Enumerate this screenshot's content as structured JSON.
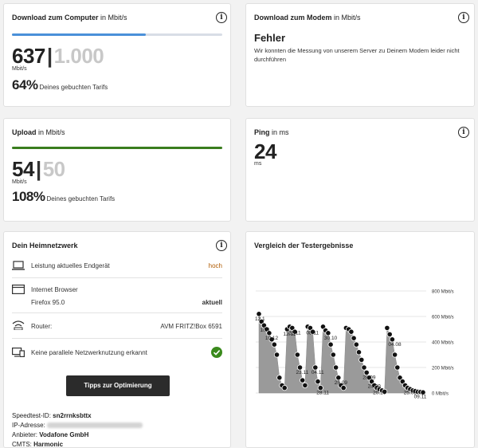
{
  "download": {
    "title": "Download zum Computer",
    "unit_suffix": "in Mbit/s",
    "value": "637",
    "separator": "|",
    "max": "1.000",
    "unit": "Mbit/s",
    "percent": "64%",
    "percent_label": "Deines gebuchten Tarifs",
    "fill_fraction": 0.637,
    "bar_color": "#4a90d9"
  },
  "modem": {
    "title": "Download zum Modem",
    "unit_suffix": "in Mbit/s",
    "error_title": "Fehler",
    "error_text": "Wir konnten die Messung von unserem Server zu Deinem Modem leider nicht durchführen"
  },
  "upload": {
    "title": "Upload",
    "unit_suffix": "in Mbit/s",
    "value": "54",
    "separator": "|",
    "max": "50",
    "unit": "Mbit/s",
    "percent": "108%",
    "percent_label": "Deines gebuchten Tarifs",
    "fill_fraction": 1.0,
    "bar_color": "#3a7d1e"
  },
  "ping": {
    "title": "Ping",
    "unit_suffix": "in ms",
    "value": "24",
    "unit": "ms"
  },
  "network": {
    "title": "Dein Heimnetzwerk",
    "rows": [
      {
        "icon": "laptop-icon",
        "label": "Leistung aktuelles Endgerät",
        "value": "hoch"
      },
      {
        "icon": "browser-icon",
        "label": "Internet Browser",
        "sub": "Firefox 95.0",
        "value": "aktuell"
      },
      {
        "icon": "wifi-icon",
        "label": "Router:",
        "value": "AVM FRITZ!Box 6591"
      },
      {
        "icon": "devices-icon",
        "label": "Keine parallele Netzwerknutzung erkannt",
        "value": ""
      }
    ],
    "button_label": "Tipps zur Optimierung",
    "speedtest_id_label": "Speedtest-ID:",
    "speedtest_id": "sn2rrnksbttx",
    "ip_label": "IP-Adresse:",
    "provider_label": "Anbieter:",
    "provider": "Vodafone GmbH",
    "cmts_label": "CMTS:",
    "cmts": "Harmonic",
    "check_color": "#3a8a1c"
  },
  "comparison": {
    "title": "Vergleich der Testergebnisse"
  },
  "chart_data": {
    "type": "area",
    "title": "Vergleich der Testergebnisse",
    "ylim": [
      0,
      800
    ],
    "y_ticks": [
      0,
      200,
      400,
      600,
      800
    ],
    "y_tick_labels": [
      "0 Mbit/s",
      "200 Mbit/s",
      "400 Mbit/s",
      "600 Mbit/s",
      "800 Mbit/s"
    ],
    "point_labels": [
      "12.1",
      "10.1",
      "10.12",
      "12.11",
      "22.11",
      "23.11",
      "08.11",
      "04.11",
      "28.11",
      "30.10",
      "25.09",
      "28.09",
      "24.09",
      "20.10",
      "04.08",
      "25.08",
      "09.11"
    ],
    "series": [
      {
        "values": [
          620,
          560,
          530,
          500,
          470,
          420,
          380,
          300,
          120,
          60,
          40,
          500,
          520,
          510,
          480,
          300,
          200,
          100,
          60,
          520,
          510,
          480,
          200,
          90,
          40,
          520,
          490,
          470,
          380,
          300,
          200,
          120,
          60,
          40,
          510,
          500,
          480,
          430,
          380,
          320,
          260,
          200,
          160,
          120,
          90,
          60,
          40,
          30,
          20,
          10,
          510,
          460,
          420,
          300,
          200,
          120,
          90,
          60,
          40,
          30,
          20,
          15,
          10,
          8,
          5
        ]
      }
    ]
  }
}
